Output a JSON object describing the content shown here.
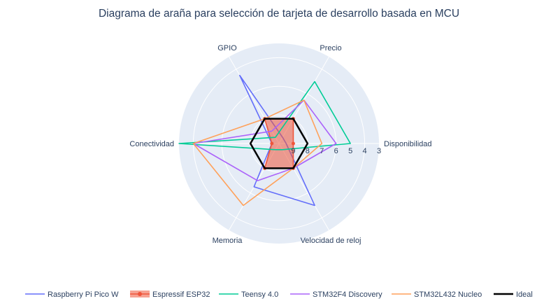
{
  "chart_data": {
    "type": "radar",
    "title": "Diagrama de araña para selección de tarjeta de desarrollo basada en MCU",
    "axes": [
      "Disponibilidad",
      "Precio",
      "GPIO",
      "Conectividad",
      "Memoria",
      "Velocidad de reloj"
    ],
    "radial_range": [
      10,
      3
    ],
    "radial_ticks": [
      "10",
      "9",
      "8",
      "7",
      "6",
      "5",
      "4",
      "3"
    ],
    "grid": true,
    "legend_position": "bottom",
    "series": [
      {
        "name": "Raspberry Pi Pico W",
        "color": "#636efa",
        "fill": false,
        "values": [
          9.5,
          9.5,
          4.5,
          9.5,
          6.5,
          5
        ]
      },
      {
        "name": "Espressif ESP32",
        "color": "#ef553b",
        "fill": true,
        "values": [
          9,
          8,
          8,
          9.5,
          8,
          8
        ]
      },
      {
        "name": "Teensy 4.0",
        "color": "#00cc96",
        "fill": false,
        "values": [
          5,
          5,
          9.5,
          3,
          9.5,
          9.5
        ]
      },
      {
        "name": "STM32F4 Discovery",
        "color": "#ab63fa",
        "fill": false,
        "values": [
          6,
          6.5,
          9,
          4,
          7,
          8
        ]
      },
      {
        "name": "STM32L432 Nucleo",
        "color": "#ffa15a",
        "fill": false,
        "values": [
          7,
          6.5,
          8,
          4,
          5,
          8
        ]
      },
      {
        "name": "Ideal",
        "color": "#000000",
        "fill": false,
        "values": [
          8,
          8,
          8,
          8,
          8,
          8
        ]
      }
    ]
  }
}
